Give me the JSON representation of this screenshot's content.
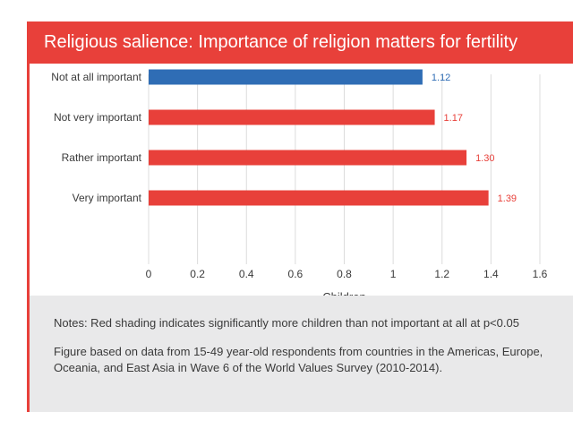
{
  "title": "Religious salience: Importance of religion matters for fertility",
  "chart_data": {
    "type": "bar",
    "orientation": "horizontal",
    "categories": [
      "Not at all important",
      "Not very important",
      "Rather important",
      "Very important"
    ],
    "values": [
      1.12,
      1.17,
      1.3,
      1.39
    ],
    "value_labels": [
      "1.12",
      "1.17",
      "1.30",
      "1.39"
    ],
    "bar_colors": [
      "#2f6db5",
      "#e8403a",
      "#e8403a",
      "#e8403a"
    ],
    "xlabel": "Children",
    "ylabel": "",
    "xlim": [
      0,
      1.6
    ],
    "xticks": [
      0,
      0.2,
      0.4,
      0.6,
      0.8,
      1,
      1.2,
      1.4,
      1.6
    ],
    "xtick_labels": [
      "0",
      "0.2",
      "0.4",
      "0.6",
      "0.8",
      "1",
      "1.2",
      "1.4",
      "1.6"
    ],
    "grid": true
  },
  "notes": {
    "line1": "Notes: Red shading indicates significantly more children than not important at all at p<0.05",
    "line2": "Figure based on data from 15-49 year-old respondents from countries in the Americas, Europe, Oceania, and East Asia in Wave 6 of the World Values Survey (2010-2014)."
  },
  "colors": {
    "accent": "#e8403a",
    "blue": "#2f6db5",
    "notes_bg": "#e9e9ea"
  }
}
